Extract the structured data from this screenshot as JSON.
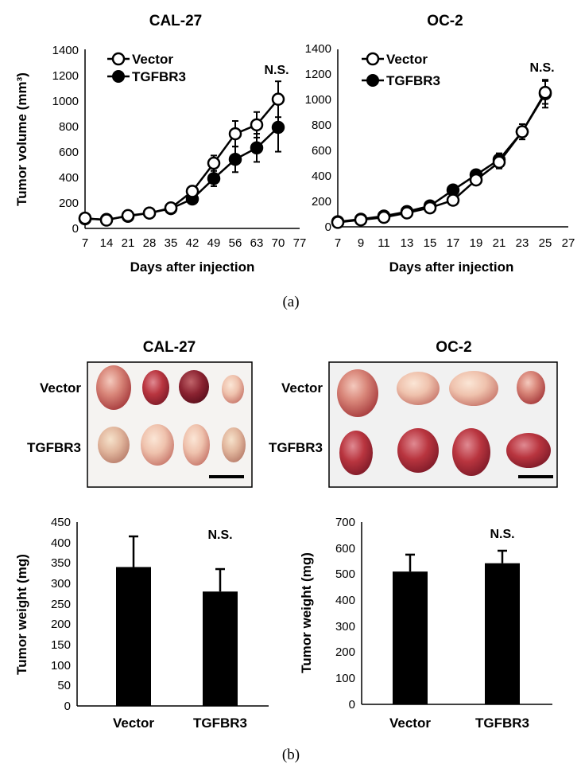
{
  "figure": {
    "panel_a_caption": "(a)",
    "panel_b_caption": "(b)",
    "photos": [
      {
        "title": "CAL-27",
        "row_labels": [
          "Vector",
          "TGFBR3"
        ]
      },
      {
        "title": "OC-2",
        "row_labels": [
          "Vector",
          "TGFBR3"
        ]
      }
    ]
  },
  "chart_data": [
    {
      "type": "line",
      "title": "CAL-27",
      "xlabel": "Days after injection",
      "ylabel": "Tumor volume (mm³)",
      "x": [
        7,
        14,
        21,
        28,
        35,
        42,
        49,
        56,
        63,
        70
      ],
      "xticks": [
        "7",
        "14",
        "21",
        "28",
        "35",
        "42",
        "49",
        "56",
        "63",
        "70",
        "77"
      ],
      "xlim": [
        7,
        77
      ],
      "yticks": [
        "0",
        "200",
        "400",
        "600",
        "800",
        "1000",
        "1200",
        "1400"
      ],
      "ylim": [
        0,
        1400
      ],
      "series": [
        {
          "name": "Vector",
          "marker": "open-circle",
          "values": [
            80,
            65,
            100,
            120,
            160,
            290,
            510,
            740,
            810,
            1010
          ],
          "errors": [
            20,
            15,
            20,
            25,
            30,
            40,
            60,
            100,
            100,
            140
          ]
        },
        {
          "name": "TGFBR3",
          "marker": "filled-circle",
          "values": [
            75,
            70,
            95,
            120,
            155,
            230,
            390,
            540,
            630,
            790
          ],
          "errors": [
            20,
            15,
            20,
            25,
            30,
            35,
            60,
            100,
            110,
            190
          ]
        }
      ],
      "annotation": "N.S.",
      "legend_position": "top-left"
    },
    {
      "type": "line",
      "title": "OC-2",
      "xlabel": "Days after injection",
      "ylabel": "",
      "x": [
        7,
        9,
        11,
        13,
        15,
        17,
        19,
        21,
        23,
        25
      ],
      "xticks": [
        "7",
        "9",
        "11",
        "13",
        "15",
        "17",
        "19",
        "21",
        "23",
        "25",
        "27"
      ],
      "xlim": [
        7,
        27
      ],
      "yticks": [
        "0",
        "200",
        "400",
        "600",
        "800",
        "1000",
        "1200",
        "1400"
      ],
      "ylim": [
        0,
        1400
      ],
      "series": [
        {
          "name": "Vector",
          "marker": "open-circle",
          "values": [
            35,
            55,
            75,
            110,
            150,
            210,
            370,
            510,
            750,
            1060
          ],
          "errors": [
            10,
            10,
            15,
            20,
            25,
            30,
            40,
            50,
            60,
            90
          ]
        },
        {
          "name": "TGFBR3",
          "marker": "filled-circle",
          "values": [
            40,
            60,
            85,
            120,
            165,
            290,
            410,
            530,
            750,
            1050
          ],
          "errors": [
            10,
            10,
            15,
            20,
            25,
            35,
            40,
            50,
            60,
            110
          ]
        }
      ],
      "annotation": "N.S.",
      "legend_position": "top-left"
    },
    {
      "type": "bar",
      "title": "",
      "categories": [
        "Vector",
        "TGFBR3"
      ],
      "values": [
        340,
        280
      ],
      "errors": [
        75,
        55
      ],
      "ylabel": "Tumor weight (mg)",
      "yticks": [
        "0",
        "50",
        "100",
        "150",
        "200",
        "250",
        "300",
        "350",
        "400",
        "450"
      ],
      "ylim": [
        0,
        450
      ],
      "annotation": "N.S."
    },
    {
      "type": "bar",
      "title": "",
      "categories": [
        "Vector",
        "TGFBR3"
      ],
      "values": [
        510,
        542
      ],
      "errors": [
        65,
        48
      ],
      "ylabel": "Tumor weight (mg)",
      "yticks": [
        "0",
        "100",
        "200",
        "300",
        "400",
        "500",
        "600",
        "700"
      ],
      "ylim": [
        0,
        700
      ],
      "annotation": "N.S."
    }
  ]
}
